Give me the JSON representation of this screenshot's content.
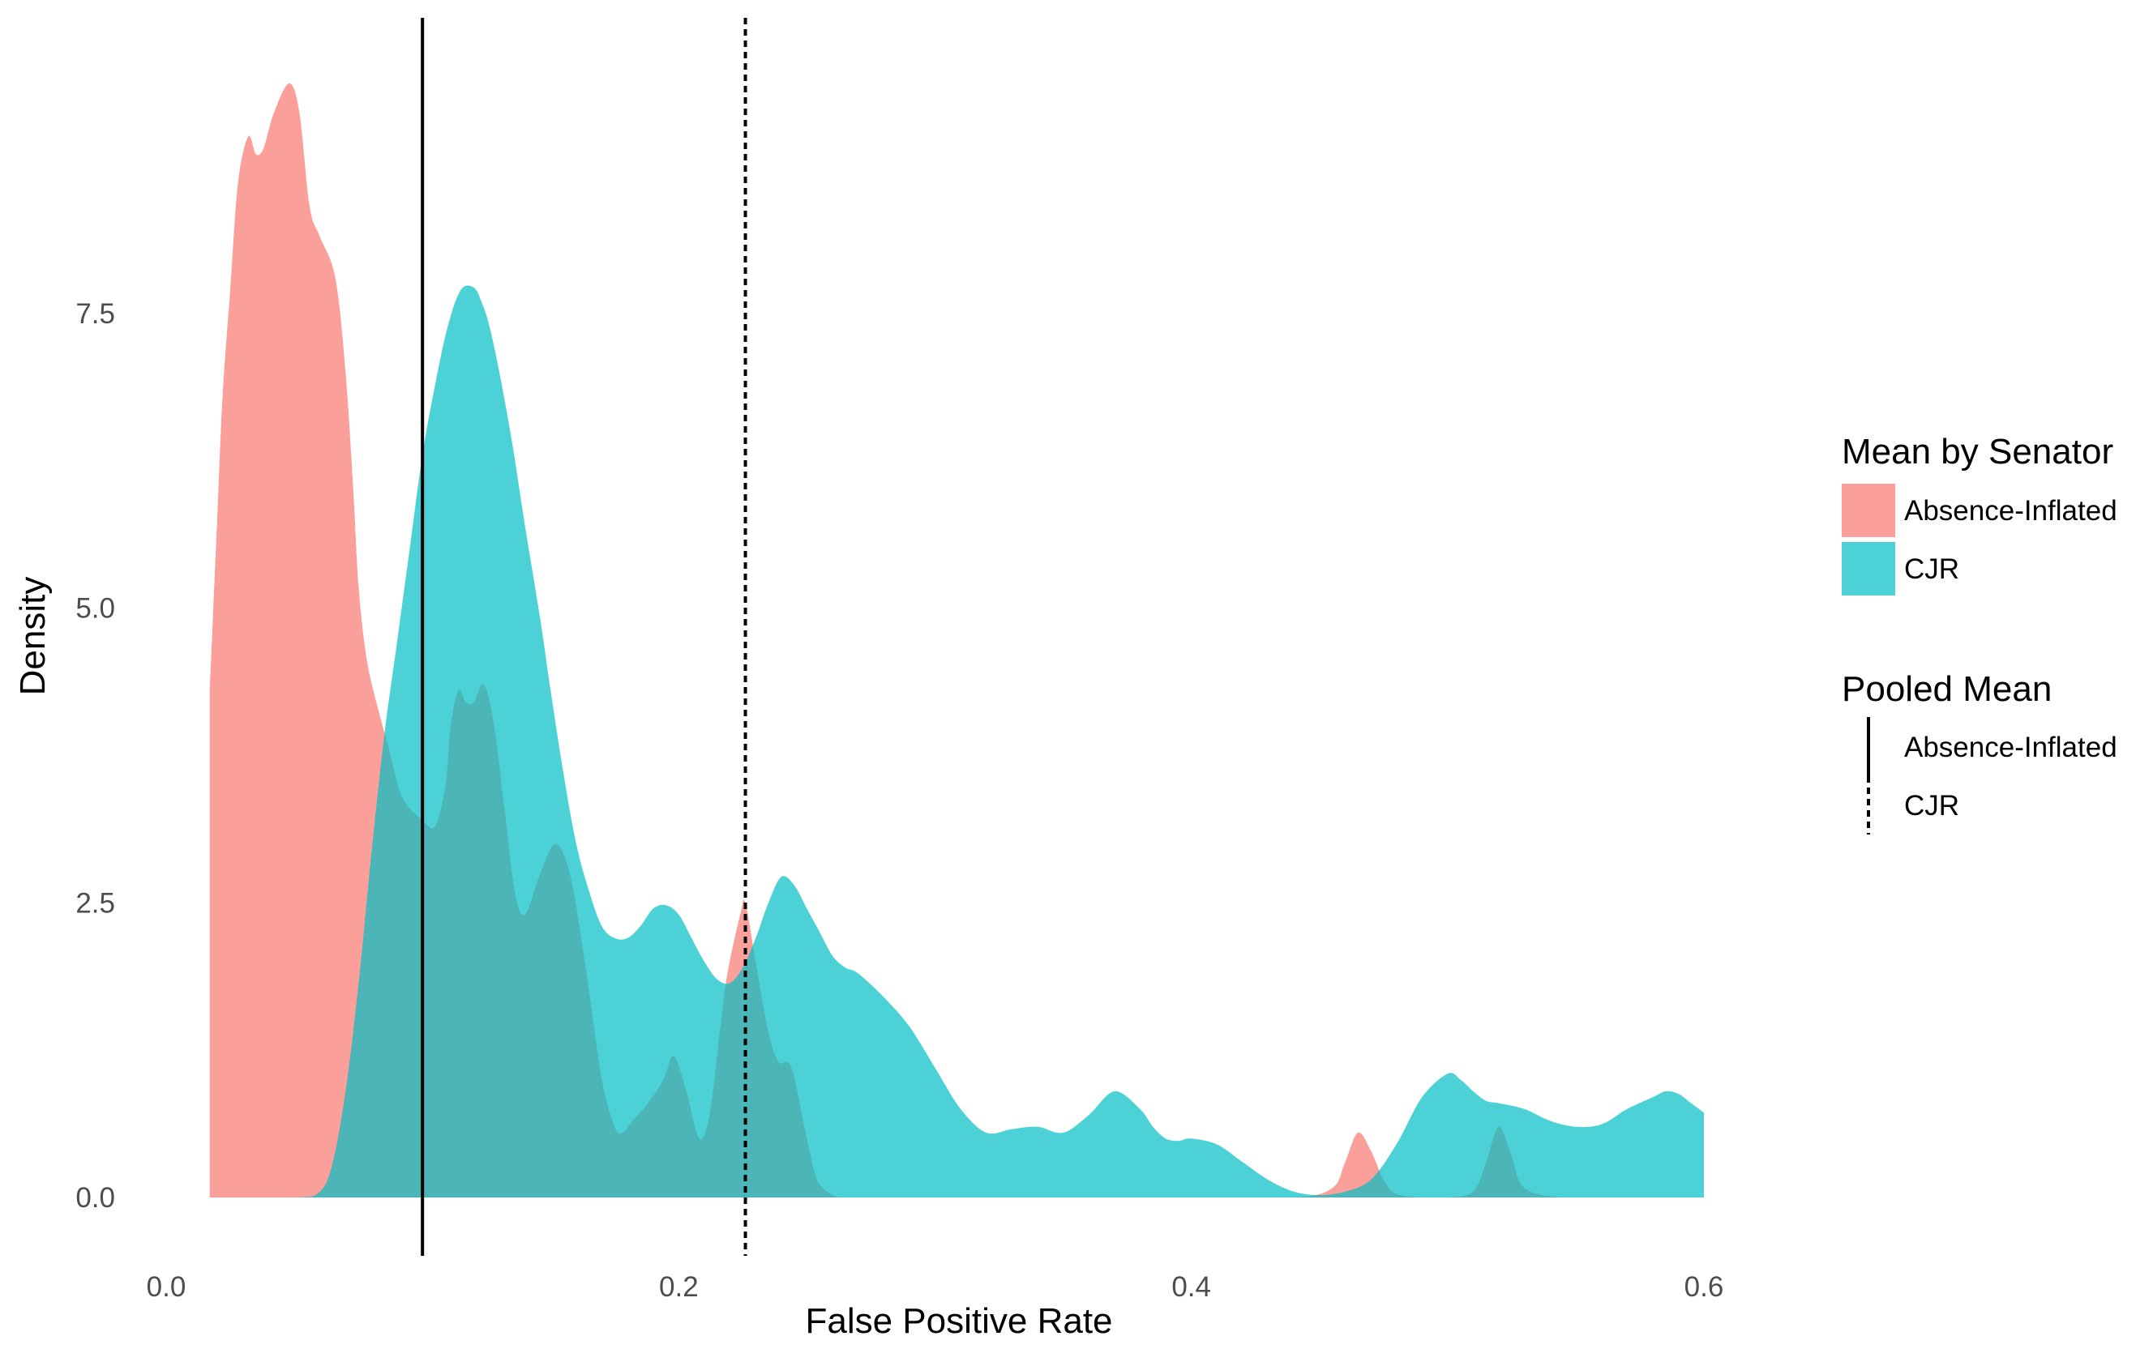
{
  "chart_data": {
    "type": "area",
    "xlabel": "False Positive Rate",
    "ylabel": "Density",
    "xlim": [
      0.0,
      0.6
    ],
    "ylim": [
      0.0,
      10.0
    ],
    "x_ticks": [
      0.0,
      0.2,
      0.4,
      0.6
    ],
    "x_tick_labels": [
      "0.0",
      "0.2",
      "0.4",
      "0.6"
    ],
    "y_ticks": [
      0.0,
      2.5,
      5.0,
      7.5
    ],
    "y_tick_labels": [
      "0.0",
      "2.5",
      "5.0",
      "7.5"
    ],
    "grid": false,
    "series": [
      {
        "name": "Absence-Inflated",
        "color": "#F8766D",
        "x": [
          0.017,
          0.02,
          0.022,
          0.025,
          0.028,
          0.032,
          0.035,
          0.038,
          0.042,
          0.048,
          0.052,
          0.056,
          0.06,
          0.066,
          0.07,
          0.073,
          0.075,
          0.078,
          0.082,
          0.087,
          0.092,
          0.1,
          0.105,
          0.109,
          0.111,
          0.114,
          0.117,
          0.12,
          0.124,
          0.128,
          0.132,
          0.136,
          0.14,
          0.146,
          0.152,
          0.158,
          0.164,
          0.17,
          0.175,
          0.178,
          0.182,
          0.188,
          0.194,
          0.198,
          0.203,
          0.208,
          0.212,
          0.216,
          0.219,
          0.224,
          0.226,
          0.23,
          0.235,
          0.239,
          0.244,
          0.25,
          0.254,
          0.26,
          0.264,
          0.268,
          0.272,
          0.278,
          0.29,
          0.32,
          0.36,
          0.4,
          0.44,
          0.455,
          0.46,
          0.465,
          0.47,
          0.475,
          0.48,
          0.49,
          0.5,
          0.51,
          0.515,
          0.52,
          0.525,
          0.53,
          0.545,
          0.57,
          0.6
        ],
        "y": [
          4.3,
          5.8,
          6.8,
          7.7,
          8.6,
          9.0,
          8.85,
          8.9,
          9.2,
          9.45,
          9.2,
          8.4,
          8.15,
          7.8,
          7.0,
          6.0,
          5.2,
          4.6,
          4.2,
          3.8,
          3.4,
          3.2,
          3.15,
          3.5,
          4.0,
          4.3,
          4.2,
          4.2,
          4.35,
          4.0,
          3.3,
          2.6,
          2.4,
          2.75,
          3.0,
          2.7,
          1.9,
          1.0,
          0.6,
          0.55,
          0.65,
          0.8,
          1.0,
          1.2,
          0.9,
          0.5,
          0.7,
          1.4,
          1.9,
          2.4,
          2.5,
          2.0,
          1.4,
          1.15,
          1.1,
          0.5,
          0.15,
          0.02,
          0.0,
          0.0,
          0.0,
          0.0,
          0.0,
          0.0,
          0.0,
          0.0,
          0.0,
          0.08,
          0.3,
          0.55,
          0.4,
          0.15,
          0.03,
          0.0,
          0.0,
          0.05,
          0.3,
          0.6,
          0.35,
          0.08,
          0.0,
          0.0,
          0.0
        ]
      },
      {
        "name": "CJR",
        "color": "#00BFC4",
        "x": [
          0.017,
          0.05,
          0.06,
          0.065,
          0.07,
          0.075,
          0.08,
          0.085,
          0.09,
          0.095,
          0.1,
          0.105,
          0.11,
          0.115,
          0.12,
          0.123,
          0.126,
          0.13,
          0.135,
          0.14,
          0.146,
          0.15,
          0.155,
          0.16,
          0.165,
          0.17,
          0.175,
          0.18,
          0.185,
          0.19,
          0.195,
          0.2,
          0.205,
          0.21,
          0.215,
          0.22,
          0.225,
          0.23,
          0.235,
          0.24,
          0.245,
          0.25,
          0.255,
          0.26,
          0.265,
          0.27,
          0.28,
          0.29,
          0.3,
          0.31,
          0.32,
          0.33,
          0.34,
          0.35,
          0.36,
          0.37,
          0.38,
          0.385,
          0.39,
          0.395,
          0.4,
          0.41,
          0.42,
          0.43,
          0.44,
          0.45,
          0.46,
          0.47,
          0.48,
          0.49,
          0.5,
          0.505,
          0.51,
          0.515,
          0.52,
          0.53,
          0.54,
          0.55,
          0.56,
          0.57,
          0.58,
          0.585,
          0.59,
          0.595,
          0.6
        ],
        "y": [
          0.0,
          0.0,
          0.05,
          0.3,
          0.9,
          1.8,
          2.9,
          3.9,
          4.7,
          5.5,
          6.3,
          6.9,
          7.4,
          7.7,
          7.72,
          7.6,
          7.4,
          7.0,
          6.4,
          5.7,
          4.9,
          4.3,
          3.6,
          3.0,
          2.6,
          2.3,
          2.2,
          2.2,
          2.3,
          2.45,
          2.48,
          2.4,
          2.2,
          2.0,
          1.85,
          1.82,
          1.95,
          2.2,
          2.5,
          2.72,
          2.65,
          2.45,
          2.25,
          2.05,
          1.95,
          1.9,
          1.7,
          1.45,
          1.1,
          0.75,
          0.55,
          0.58,
          0.6,
          0.55,
          0.7,
          0.9,
          0.75,
          0.6,
          0.5,
          0.48,
          0.5,
          0.45,
          0.3,
          0.15,
          0.05,
          0.02,
          0.05,
          0.15,
          0.45,
          0.85,
          1.05,
          1.0,
          0.9,
          0.82,
          0.8,
          0.75,
          0.65,
          0.6,
          0.62,
          0.75,
          0.85,
          0.9,
          0.88,
          0.8,
          0.72
        ]
      }
    ],
    "vlines": [
      {
        "name": "Absence-Inflated",
        "x": 0.1,
        "linetype": "solid"
      },
      {
        "name": "CJR",
        "x": 0.226,
        "linetype": "dashed"
      }
    ],
    "legend_placement": "right",
    "legends": [
      {
        "title": "Mean by Senator",
        "entries": [
          "Absence-Inflated",
          "CJR"
        ]
      },
      {
        "title": "Pooled Mean",
        "entries": [
          "Absence-Inflated",
          "CJR"
        ]
      }
    ]
  }
}
